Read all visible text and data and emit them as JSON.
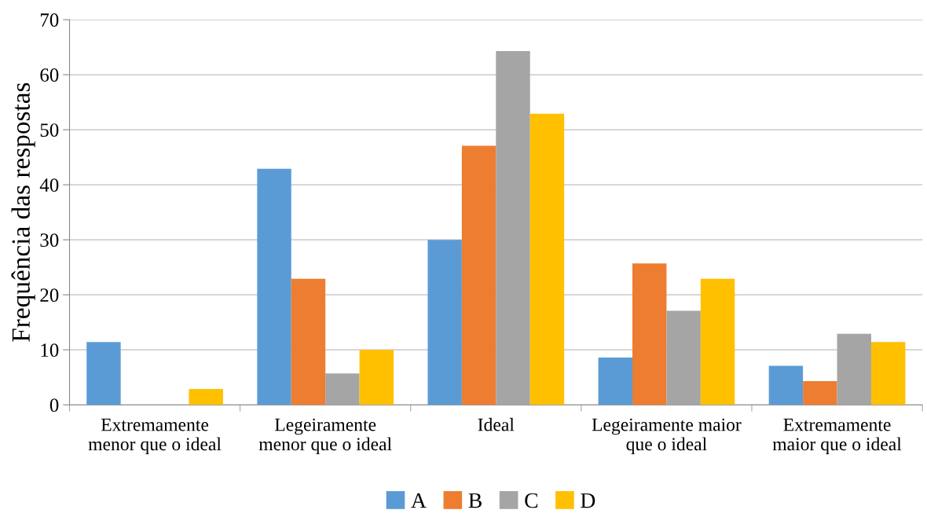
{
  "chart_data": {
    "type": "bar",
    "ylabel": "Frequência das respostas",
    "categories": [
      "Extremamente\nmenor que o ideal",
      "Legeiramente\nmenor que o ideal",
      "Ideal",
      "Legeiramente maior\nque o ideal",
      "Extremamente\nmaior que o ideal"
    ],
    "series": [
      {
        "name": "A",
        "color": "#5b9bd5",
        "values": [
          11.4,
          42.9,
          30.0,
          8.6,
          7.1
        ]
      },
      {
        "name": "B",
        "color": "#ed7d31",
        "values": [
          0,
          22.9,
          47.1,
          25.7,
          4.3
        ]
      },
      {
        "name": "C",
        "color": "#a5a5a5",
        "values": [
          0,
          5.7,
          64.3,
          17.1,
          12.9
        ]
      },
      {
        "name": "D",
        "color": "#ffc000",
        "values": [
          2.9,
          10.0,
          52.9,
          22.9,
          11.4
        ]
      }
    ],
    "ylim": [
      0,
      70
    ],
    "yticks": [
      0,
      10,
      20,
      30,
      40,
      50,
      60,
      70
    ],
    "grid": "y",
    "legend": "bottom"
  }
}
